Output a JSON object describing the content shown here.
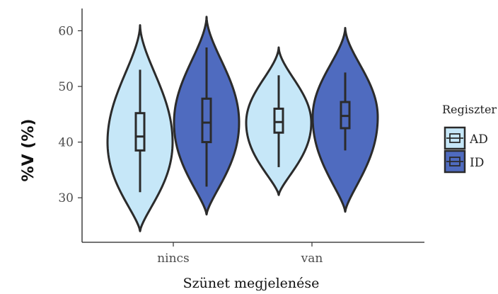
{
  "chart_data": {
    "type": "violin",
    "xlabel": "Szünet megjelenése",
    "ylabel": "%V (%)",
    "ylim": [
      22,
      64
    ],
    "yticks": [
      30,
      40,
      50,
      60
    ],
    "categories": [
      "nincs",
      "van"
    ],
    "legend": {
      "title": "Regiszter",
      "position": "right",
      "entries": [
        "AD",
        "ID"
      ]
    },
    "grid": false,
    "series": [
      {
        "name": "AD",
        "color": "#c6e7f8",
        "groups": [
          {
            "category": "nincs",
            "min": 24,
            "max": 61,
            "q1": 38.5,
            "median": 41,
            "q3": 45.2,
            "whisker_low": 31,
            "whisker_high": 53,
            "mode": 40
          },
          {
            "category": "van",
            "min": 30.5,
            "max": 57,
            "q1": 41.7,
            "median": 43.6,
            "q3": 46,
            "whisker_low": 35.5,
            "whisker_high": 52,
            "mode": 43.5
          }
        ]
      },
      {
        "name": "ID",
        "color": "#4f6bbf",
        "groups": [
          {
            "category": "nincs",
            "min": 27,
            "max": 62.5,
            "q1": 40,
            "median": 43.5,
            "q3": 47.8,
            "whisker_low": 32,
            "whisker_high": 57,
            "mode": 43.5
          },
          {
            "category": "van",
            "min": 27.5,
            "max": 60.5,
            "q1": 42.5,
            "median": 44.7,
            "q3": 47.2,
            "whisker_low": 38.5,
            "whisker_high": 52.5,
            "mode": 44.5
          }
        ]
      }
    ]
  }
}
